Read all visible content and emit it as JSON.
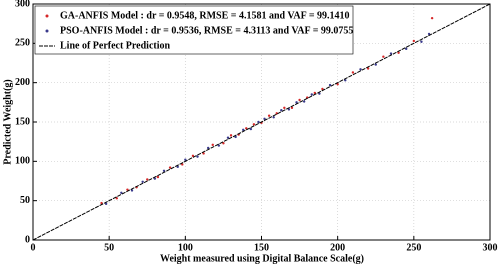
{
  "chart_data": {
    "type": "scatter",
    "xlabel": "Weight measured using Digital Balance Scale(g)",
    "ylabel": "Predicted Weight(g)",
    "xlim": [
      0,
      300
    ],
    "ylim": [
      0,
      300
    ],
    "xticks": [
      0,
      50,
      100,
      150,
      200,
      250,
      300
    ],
    "yticks": [
      0,
      50,
      100,
      150,
      200,
      250,
      300
    ],
    "grid": true,
    "legend": "upper left",
    "series": [
      {
        "name": "GA-ANFIS Model  : dr = 0.9548, RMSE = 4.1581 and VAF = 99.1410",
        "type": "scatter",
        "color": "#d62728",
        "x": [
          45,
          55,
          62,
          68,
          75,
          82,
          90,
          98,
          105,
          112,
          118,
          125,
          130,
          135,
          140,
          145,
          150,
          155,
          160,
          165,
          170,
          175,
          180,
          185,
          190,
          200,
          210,
          220,
          230,
          240,
          250,
          262
        ],
        "values": [
          47,
          53,
          64,
          67,
          77,
          80,
          92,
          96,
          107,
          110,
          121,
          123,
          133,
          134,
          142,
          147,
          149,
          158,
          161,
          168,
          168,
          178,
          181,
          187,
          192,
          198,
          213,
          218,
          233,
          238,
          253,
          282
        ]
      },
      {
        "name": "PSO-ANFIS Model : dr = 0.9536, RMSE = 4.3113 and VAF = 99.0755",
        "type": "scatter",
        "color": "#3a3a8c",
        "x": [
          48,
          58,
          65,
          72,
          80,
          86,
          95,
          100,
          108,
          115,
          122,
          128,
          133,
          138,
          143,
          148,
          152,
          158,
          163,
          168,
          173,
          178,
          183,
          188,
          195,
          205,
          215,
          225,
          235,
          245,
          255,
          260
        ],
        "values": [
          46,
          60,
          63,
          74,
          78,
          88,
          93,
          102,
          106,
          117,
          120,
          130,
          131,
          140,
          141,
          150,
          154,
          156,
          165,
          166,
          175,
          176,
          185,
          186,
          197,
          203,
          217,
          223,
          237,
          243,
          252,
          262
        ]
      },
      {
        "name": "Line of Perfect Prediction",
        "type": "line",
        "color": "#000000",
        "x": [
          0,
          300
        ],
        "values": [
          0,
          300
        ]
      }
    ]
  }
}
